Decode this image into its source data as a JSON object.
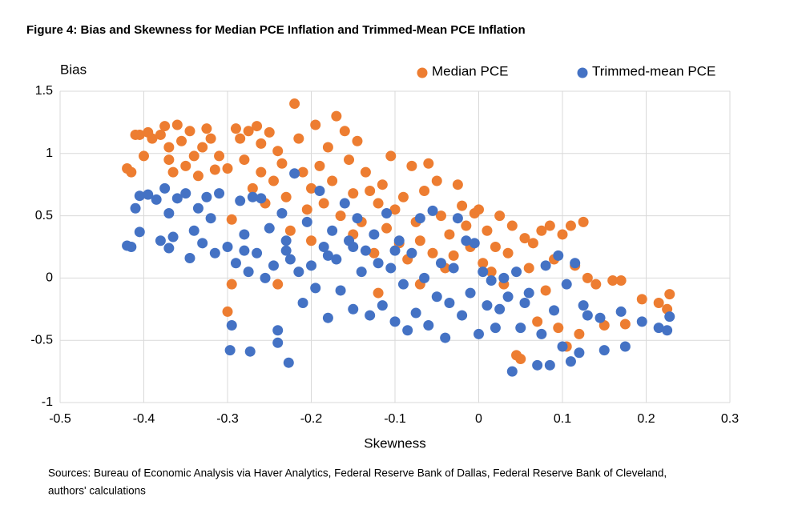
{
  "chart_data": {
    "type": "scatter",
    "title": "Figure 4: Bias and Skewness for Median PCE Inflation and Trimmed-Mean PCE Inflation",
    "y_label": "Bias",
    "x_label": "Skewness",
    "note": [
      "Sources: Bureau of Economic Analysis via Haver Analytics, Federal Reserve Bank of Dallas, Federal Reserve Bank of Cleveland,",
      "authors' calculations"
    ],
    "xlim": [
      -0.5,
      0.3
    ],
    "xticks": [
      -0.5,
      -0.4,
      -0.3,
      -0.2,
      -0.1,
      0,
      0.1,
      0.2,
      0.3
    ],
    "ylim": [
      -1,
      1.5
    ],
    "yticks": [
      -1,
      -0.5,
      0,
      0.5,
      1,
      1.5
    ],
    "grid": true,
    "legend": "top-right",
    "series": [
      {
        "name": "Median PCE",
        "color": "#ed7d31",
        "x": [
          -0.42,
          -0.415,
          -0.41,
          -0.405,
          -0.4,
          -0.395,
          -0.39,
          -0.38,
          -0.375,
          -0.37,
          -0.37,
          -0.365,
          -0.36,
          -0.355,
          -0.35,
          -0.345,
          -0.34,
          -0.335,
          -0.33,
          -0.325,
          -0.32,
          -0.315,
          -0.31,
          -0.3,
          -0.295,
          -0.295,
          -0.3,
          -0.29,
          -0.285,
          -0.28,
          -0.275,
          -0.27,
          -0.265,
          -0.26,
          -0.255,
          -0.25,
          -0.245,
          -0.24,
          -0.235,
          -0.23,
          -0.225,
          -0.22,
          -0.215,
          -0.21,
          -0.205,
          -0.2,
          -0.195,
          -0.19,
          -0.185,
          -0.18,
          -0.175,
          -0.17,
          -0.165,
          -0.16,
          -0.155,
          -0.15,
          -0.145,
          -0.14,
          -0.135,
          -0.13,
          -0.125,
          -0.12,
          -0.115,
          -0.11,
          -0.105,
          -0.1,
          -0.095,
          -0.09,
          -0.085,
          -0.08,
          -0.075,
          -0.07,
          -0.065,
          -0.06,
          -0.055,
          -0.05,
          -0.045,
          -0.04,
          -0.035,
          -0.03,
          -0.025,
          -0.02,
          -0.015,
          -0.01,
          -0.005,
          0,
          0.005,
          0.01,
          0.015,
          0.02,
          0.025,
          0.03,
          0.035,
          0.04,
          0.045,
          0.05,
          0.055,
          0.06,
          0.065,
          0.07,
          0.075,
          0.08,
          0.085,
          0.09,
          0.095,
          0.1,
          0.105,
          0.11,
          0.115,
          0.12,
          0.125,
          0.13,
          0.14,
          0.15,
          0.16,
          0.17,
          0.175,
          0.195,
          0.215,
          0.225,
          0.228,
          -0.26,
          -0.2,
          -0.15,
          -0.24,
          -0.12,
          -0.07
        ],
        "values": [
          0.88,
          0.85,
          1.15,
          1.15,
          0.98,
          1.17,
          1.12,
          1.15,
          1.22,
          1.05,
          0.95,
          0.85,
          1.23,
          1.1,
          0.9,
          1.18,
          0.98,
          0.82,
          1.05,
          1.2,
          1.12,
          0.87,
          0.98,
          0.88,
          0.47,
          -0.05,
          -0.27,
          1.2,
          1.12,
          0.95,
          1.18,
          0.72,
          1.22,
          1.08,
          0.6,
          1.17,
          0.78,
          1.02,
          0.92,
          0.65,
          0.38,
          1.4,
          1.12,
          0.85,
          0.55,
          0.72,
          1.23,
          0.9,
          0.6,
          1.05,
          0.78,
          1.3,
          0.5,
          1.18,
          0.95,
          0.68,
          1.1,
          0.45,
          0.85,
          0.7,
          0.2,
          0.6,
          0.75,
          0.4,
          0.98,
          0.55,
          0.28,
          0.65,
          0.15,
          0.9,
          0.45,
          0.3,
          0.7,
          0.92,
          0.2,
          0.78,
          0.5,
          0.08,
          0.35,
          0.18,
          0.75,
          0.58,
          0.42,
          0.25,
          0.52,
          0.55,
          0.12,
          0.38,
          0.05,
          0.25,
          0.5,
          -0.05,
          0.2,
          0.42,
          -0.62,
          -0.65,
          0.32,
          0.08,
          0.28,
          -0.35,
          0.38,
          -0.1,
          0.42,
          0.15,
          -0.4,
          0.35,
          -0.55,
          0.42,
          0.1,
          -0.45,
          0.45,
          0,
          -0.05,
          -0.38,
          -0.02,
          -0.02,
          -0.37,
          -0.17,
          -0.2,
          -0.25,
          -0.13,
          0.85,
          0.3,
          0.35,
          -0.05,
          -0.12,
          -0.05
        ]
      },
      {
        "name": "Trimmed-mean PCE",
        "color": "#4472c4",
        "x": [
          -0.42,
          -0.415,
          -0.41,
          -0.405,
          -0.405,
          -0.395,
          -0.385,
          -0.38,
          -0.375,
          -0.37,
          -0.37,
          -0.365,
          -0.36,
          -0.35,
          -0.345,
          -0.34,
          -0.335,
          -0.33,
          -0.325,
          -0.32,
          -0.315,
          -0.31,
          -0.3,
          -0.295,
          -0.297,
          -0.29,
          -0.285,
          -0.28,
          -0.275,
          -0.273,
          -0.27,
          -0.265,
          -0.26,
          -0.255,
          -0.25,
          -0.245,
          -0.24,
          -0.24,
          -0.235,
          -0.23,
          -0.227,
          -0.225,
          -0.22,
          -0.215,
          -0.21,
          -0.205,
          -0.2,
          -0.195,
          -0.19,
          -0.185,
          -0.18,
          -0.175,
          -0.17,
          -0.165,
          -0.16,
          -0.155,
          -0.15,
          -0.145,
          -0.14,
          -0.135,
          -0.13,
          -0.125,
          -0.12,
          -0.115,
          -0.11,
          -0.105,
          -0.1,
          -0.095,
          -0.09,
          -0.085,
          -0.08,
          -0.075,
          -0.07,
          -0.065,
          -0.06,
          -0.055,
          -0.05,
          -0.045,
          -0.04,
          -0.035,
          -0.03,
          -0.025,
          -0.02,
          -0.015,
          -0.01,
          -0.005,
          0,
          0.005,
          0.01,
          0.015,
          0.02,
          0.025,
          0.03,
          0.035,
          0.04,
          0.045,
          0.05,
          0.055,
          0.06,
          0.07,
          0.075,
          0.08,
          0.085,
          0.09,
          0.095,
          0.1,
          0.105,
          0.11,
          0.115,
          0.12,
          0.125,
          0.13,
          0.145,
          0.15,
          0.17,
          0.175,
          0.195,
          0.215,
          0.225,
          0.228,
          -0.15,
          -0.18,
          -0.1,
          -0.23,
          -0.28
        ],
        "values": [
          0.26,
          0.25,
          0.56,
          0.66,
          0.37,
          0.67,
          0.63,
          0.3,
          0.72,
          0.52,
          0.24,
          0.33,
          0.64,
          0.68,
          0.16,
          0.38,
          0.56,
          0.28,
          0.65,
          0.48,
          0.2,
          0.68,
          0.25,
          -0.38,
          -0.58,
          0.12,
          0.62,
          0.35,
          0.05,
          -0.59,
          0.65,
          0.2,
          0.64,
          0,
          0.4,
          0.1,
          -0.42,
          -0.52,
          0.52,
          0.3,
          -0.68,
          0.15,
          0.84,
          0.05,
          -0.2,
          0.45,
          0.1,
          -0.08,
          0.7,
          0.25,
          -0.32,
          0.38,
          0.15,
          -0.1,
          0.6,
          0.3,
          -0.25,
          0.48,
          0.05,
          0.22,
          -0.3,
          0.35,
          0.12,
          -0.22,
          0.52,
          0.08,
          -0.35,
          0.3,
          -0.05,
          -0.42,
          0.2,
          -0.28,
          0.48,
          0,
          -0.38,
          0.54,
          -0.15,
          0.12,
          -0.48,
          -0.2,
          0.08,
          0.48,
          -0.3,
          0.3,
          -0.12,
          0.28,
          -0.45,
          0.05,
          -0.22,
          -0.02,
          -0.4,
          -0.25,
          0,
          -0.15,
          -0.75,
          0.05,
          -0.4,
          -0.2,
          -0.12,
          -0.7,
          -0.45,
          0.1,
          -0.7,
          -0.26,
          0.18,
          -0.55,
          -0.05,
          -0.67,
          0.12,
          -0.6,
          -0.22,
          -0.3,
          -0.32,
          -0.58,
          -0.27,
          -0.55,
          -0.35,
          -0.4,
          -0.42,
          -0.31,
          0.25,
          0.18,
          0.22,
          0.22,
          0.22
        ]
      }
    ]
  }
}
